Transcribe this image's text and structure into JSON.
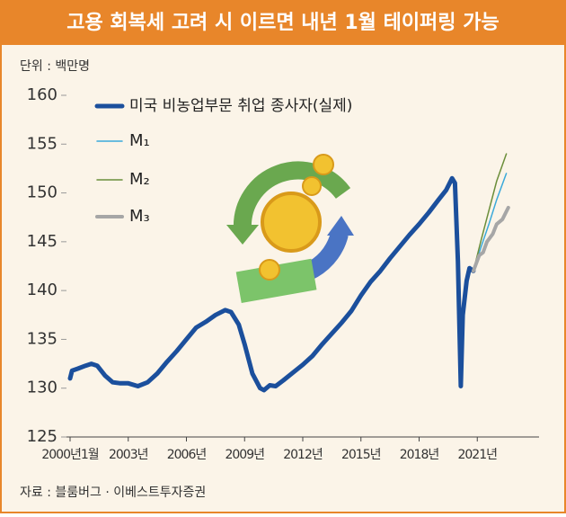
{
  "chart_data": {
    "type": "line",
    "title": "고용 회복세 고려 시 이르면 내년 1월 테이퍼링 가능",
    "unit_label": "단위 : 백만명",
    "source": "자료 : 블룸버그 · 이베스트투자증권",
    "xlim": [
      2000,
      2024
    ],
    "xticks": [
      {
        "value": 2000,
        "label": "2000년1월"
      },
      {
        "value": 2003,
        "label": "2003년"
      },
      {
        "value": 2006,
        "label": "2006년"
      },
      {
        "value": 2009,
        "label": "2009년"
      },
      {
        "value": 2012,
        "label": "2012년"
      },
      {
        "value": 2015,
        "label": "2015년"
      },
      {
        "value": 2018,
        "label": "2018년"
      },
      {
        "value": 2021,
        "label": "2021년"
      }
    ],
    "ylim": [
      125,
      160
    ],
    "yticks": [
      125,
      130,
      135,
      140,
      145,
      150,
      155,
      160
    ],
    "series": [
      {
        "name": "미국 비농업부문 취업 종사자(실제)",
        "color": "#1b4f9c",
        "width": 5,
        "x": [
          2000.0,
          2000.1,
          2000.4,
          2000.8,
          2001.1,
          2001.4,
          2001.8,
          2002.2,
          2002.6,
          2003.0,
          2003.5,
          2004.0,
          2004.5,
          2005.0,
          2005.5,
          2006.0,
          2006.5,
          2007.0,
          2007.5,
          2008.0,
          2008.3,
          2008.7,
          2009.0,
          2009.4,
          2009.8,
          2010.0,
          2010.3,
          2010.6,
          2011.0,
          2011.5,
          2012.0,
          2012.5,
          2013.0,
          2013.5,
          2014.0,
          2014.5,
          2015.0,
          2015.5,
          2016.0,
          2016.5,
          2017.0,
          2017.5,
          2018.0,
          2018.5,
          2019.0,
          2019.4,
          2019.7,
          2019.85,
          2020.0,
          2020.15,
          2020.25,
          2020.45,
          2020.6,
          2020.8
        ],
        "values": [
          131.0,
          131.8,
          132.0,
          132.3,
          132.5,
          132.3,
          131.3,
          130.6,
          130.5,
          130.5,
          130.2,
          130.6,
          131.5,
          132.7,
          133.8,
          135.0,
          136.2,
          136.8,
          137.5,
          138.0,
          137.8,
          136.5,
          134.5,
          131.5,
          130.0,
          129.8,
          130.3,
          130.2,
          130.8,
          131.6,
          132.4,
          133.3,
          134.5,
          135.6,
          136.7,
          137.9,
          139.5,
          140.9,
          142.0,
          143.3,
          144.5,
          145.7,
          146.8,
          148.0,
          149.3,
          150.3,
          151.5,
          151.0,
          143.0,
          130.2,
          137.5,
          141.0,
          142.3,
          142.0
        ]
      },
      {
        "name": "M₁",
        "color": "#3aa9da",
        "width": 1.5,
        "x": [
          2020.8,
          2021.2,
          2021.6,
          2022.0,
          2022.5
        ],
        "values": [
          142.0,
          144.5,
          146.8,
          149.3,
          152.0
        ]
      },
      {
        "name": "M₂",
        "color": "#6b8e3a",
        "width": 1.5,
        "x": [
          2020.8,
          2021.2,
          2021.6,
          2022.0,
          2022.5
        ],
        "values": [
          142.0,
          145.2,
          148.2,
          151.2,
          154.0
        ]
      },
      {
        "name": "M₃",
        "color": "#a6a6a6",
        "width": 4,
        "x": [
          2020.8,
          2021.1,
          2021.3,
          2021.5,
          2021.8,
          2022.0,
          2022.3,
          2022.6
        ],
        "values": [
          142.0,
          143.6,
          143.9,
          145.0,
          145.8,
          146.8,
          147.3,
          148.5
        ]
      }
    ]
  }
}
